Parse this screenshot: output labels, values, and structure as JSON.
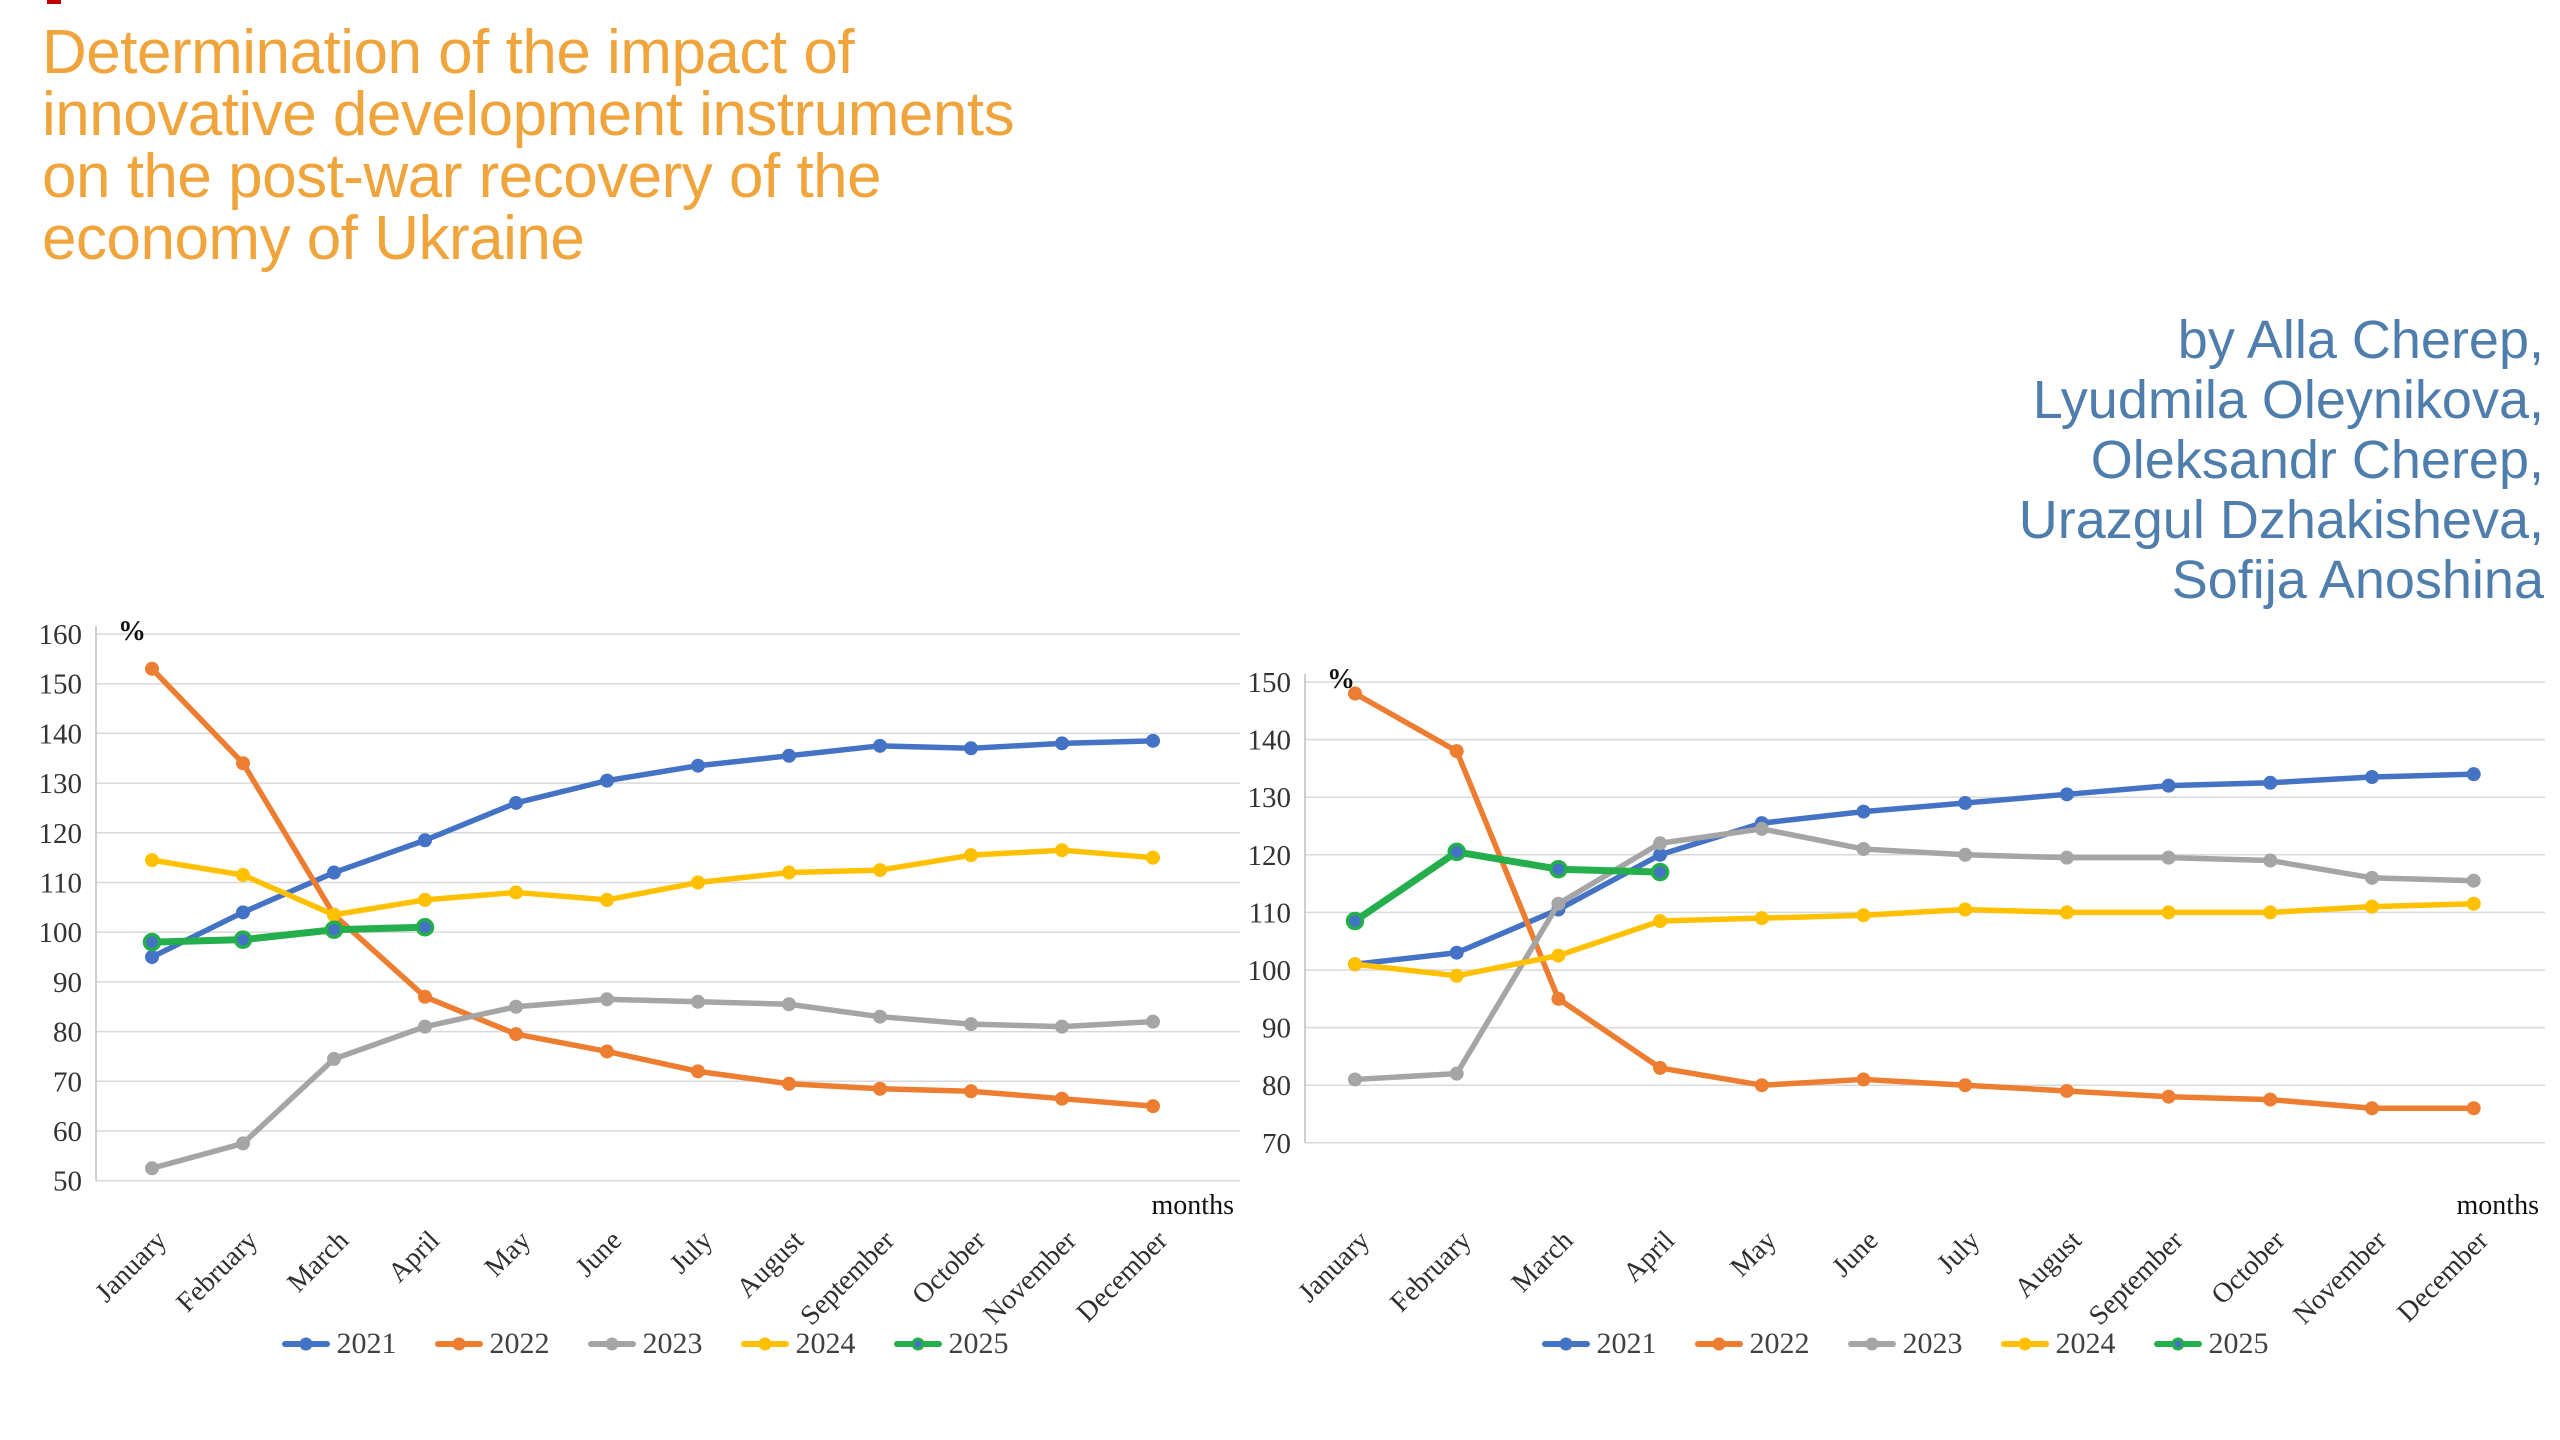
{
  "title": "Determination of the impact of innovative development instruments on the post-war recovery of the economy of Ukraine",
  "title_lines": [
    "Determination of the impact of",
    "innovative development instruments",
    "on the post-war recovery of the",
    "economy of Ukraine"
  ],
  "authors": [
    "by Alla Cherep,",
    "Lyudmila Oleynikova,",
    "Oleksandr Cherep,",
    "Urazgul Dzhakisheva,",
    "Sofija Anoshina"
  ],
  "colors": {
    "title": "#F0A53C",
    "authors": "#4F7DAC",
    "gridline": "#D9D9D9",
    "axis_line": "#BFBFBF",
    "chart_text": "#333333",
    "red_mark": "#C00000"
  },
  "chart_data": [
    {
      "type": "line",
      "title": "",
      "unit_label": "%",
      "xlabel": "months",
      "legend_position": "bottom",
      "grid": true,
      "ylim": [
        50,
        160
      ],
      "yticks": [
        160,
        150,
        140,
        130,
        120,
        110,
        100,
        90,
        80,
        70,
        60,
        50
      ],
      "categories": [
        "January",
        "February",
        "March",
        "April",
        "May",
        "June",
        "July",
        "August",
        "September",
        "October",
        "November",
        "December"
      ],
      "series": [
        {
          "name": "2021",
          "color": "#4472C4",
          "values": [
            95,
            104,
            112,
            118.5,
            126,
            130.5,
            133.5,
            135.5,
            137.5,
            137,
            138,
            138.5
          ]
        },
        {
          "name": "2022",
          "color": "#ED7D31",
          "values": [
            153,
            134,
            103.5,
            87,
            79.5,
            76,
            72,
            69.5,
            68.5,
            68,
            66.5,
            65
          ]
        },
        {
          "name": "2023",
          "color": "#A5A5A5",
          "values": [
            52.5,
            57.5,
            74.5,
            81,
            85,
            86.5,
            86,
            85.5,
            83,
            81.5,
            81,
            82
          ]
        },
        {
          "name": "2024",
          "color": "#FFC000",
          "values": [
            114.5,
            111.5,
            103.5,
            106.5,
            108,
            106.5,
            110,
            112,
            112.5,
            115.5,
            116.5,
            115
          ]
        },
        {
          "name": "2025",
          "color": "#24AF4C",
          "marker_fill": "#4472C4",
          "values": [
            98,
            98.5,
            100.5,
            101
          ]
        }
      ]
    },
    {
      "type": "line",
      "title": "",
      "unit_label": "%",
      "xlabel": "months",
      "legend_position": "bottom",
      "grid": true,
      "ylim": [
        70,
        150
      ],
      "yticks": [
        150,
        140,
        130,
        120,
        110,
        100,
        90,
        80,
        70
      ],
      "categories": [
        "January",
        "February",
        "March",
        "April",
        "May",
        "June",
        "July",
        "August",
        "September",
        "October",
        "November",
        "December"
      ],
      "series": [
        {
          "name": "2021",
          "color": "#4472C4",
          "values": [
            101,
            103,
            110.5,
            120,
            125.5,
            127.5,
            129,
            130.5,
            132,
            132.5,
            133.5,
            134
          ]
        },
        {
          "name": "2022",
          "color": "#ED7D31",
          "values": [
            148,
            138,
            95,
            83,
            80,
            81,
            80,
            79,
            78,
            77.5,
            76,
            76
          ]
        },
        {
          "name": "2023",
          "color": "#A5A5A5",
          "values": [
            81,
            82,
            111.5,
            122,
            124.5,
            121,
            120,
            119.5,
            119.5,
            119,
            116,
            115.5
          ]
        },
        {
          "name": "2024",
          "color": "#FFC000",
          "values": [
            101,
            99,
            102.5,
            108.5,
            109,
            109.5,
            110.5,
            110,
            110,
            110,
            111,
            111.5
          ]
        },
        {
          "name": "2025",
          "color": "#24AF4C",
          "marker_fill": "#4472C4",
          "values": [
            108.5,
            120.5,
            117.5,
            117
          ]
        }
      ]
    }
  ]
}
